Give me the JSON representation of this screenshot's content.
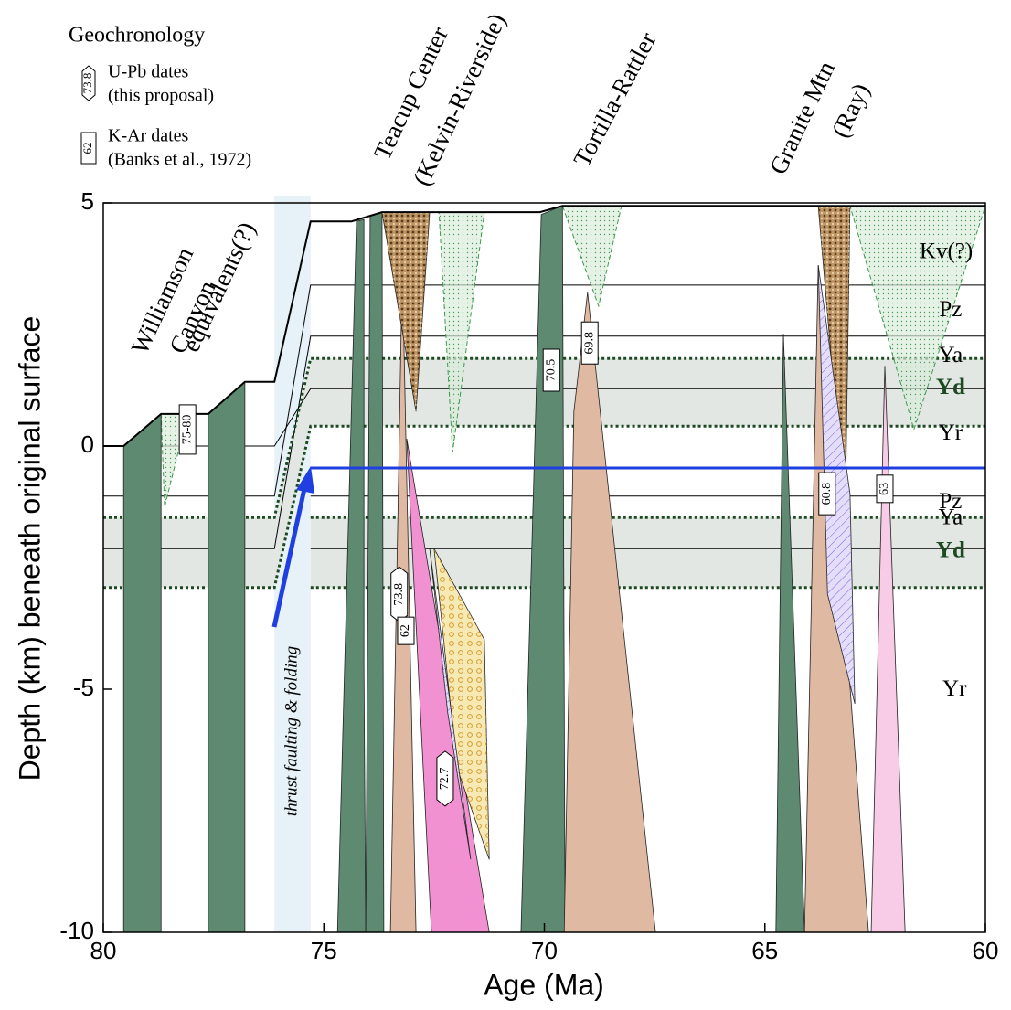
{
  "chart_data": {
    "type": "geologic-section",
    "xlabel": "Age (Ma)",
    "ylabel": "Depth (km) beneath original surface",
    "xlim": [
      80,
      60
    ],
    "ylim": [
      -10,
      5
    ],
    "xticks": [
      80,
      75,
      70,
      65,
      60
    ],
    "yticks": [
      5,
      0,
      -5,
      -10
    ],
    "legend": {
      "title": "Geochronology",
      "items": [
        {
          "kind": "U-Pb",
          "symbol": "73.8",
          "text": [
            "U-Pb dates",
            "(this proposal)"
          ]
        },
        {
          "kind": "K-Ar",
          "symbol": "62",
          "text": [
            "K-Ar dates",
            "(Banks et al., 1972)"
          ]
        }
      ]
    },
    "columns": [
      [
        "Williamson",
        "Canyon",
        "equivalents(?)"
      ],
      [
        "Teacup Center",
        "(Kelvin-Riverside)"
      ],
      [
        "Tortilla-Rattler"
      ],
      [
        "Granite Mtn",
        "(Ray)"
      ]
    ],
    "thrust_zone": {
      "x": [
        76.12,
        75.3
      ],
      "label": "thrust faulting & folding"
    },
    "bands": [
      {
        "color": "#e2e7e4",
        "x": [
          80,
          76.12,
          75.3,
          60
        ],
        "top": [
          -1.47,
          -1.47,
          1.8,
          1.8
        ],
        "bottom": [
          -2.91,
          -2.91,
          0.41,
          0.41
        ]
      },
      {
        "color": "#e2e7e4",
        "x": [
          75.3,
          60
        ],
        "top": [
          -1.47,
          -1.47
        ],
        "bottom": [
          -2.91,
          -2.91
        ]
      }
    ],
    "contacts": [
      {
        "style": "solid",
        "x": [
          80,
          76.12,
          75.3,
          60
        ],
        "y": [
          0,
          0,
          1.18,
          1.18
        ]
      },
      {
        "style": "solid",
        "x": [
          80,
          76.12,
          75.3,
          60
        ],
        "y": [
          -1.03,
          -1.03,
          3.31,
          3.31
        ]
      },
      {
        "style": "solid",
        "x": [
          80,
          76.12,
          75.3,
          60
        ],
        "y": [
          -2.11,
          -2.11,
          2.26,
          2.26
        ]
      },
      {
        "style": "solid",
        "x": [
          75.3,
          60
        ],
        "y": [
          -1.03,
          -1.03
        ]
      },
      {
        "style": "solid",
        "x": [
          75.3,
          60
        ],
        "y": [
          -2.11,
          -2.11
        ]
      },
      {
        "style": "dotted",
        "x": [
          80,
          76.12,
          75.3,
          60
        ],
        "y": [
          -1.47,
          -1.47,
          1.8,
          1.8
        ]
      },
      {
        "style": "dotted",
        "x": [
          80,
          76.12,
          75.3,
          60
        ],
        "y": [
          -2.91,
          -2.91,
          0.41,
          0.41
        ]
      },
      {
        "style": "dotted",
        "x": [
          75.3,
          60
        ],
        "y": [
          -1.47,
          -1.47
        ]
      },
      {
        "style": "dotted",
        "x": [
          75.3,
          60
        ],
        "y": [
          -2.91,
          -2.91
        ]
      }
    ],
    "bodies": [
      {
        "color": "#dcecdc",
        "pattern": "stipple",
        "x": [
          78.69,
          78.09,
          78.61
        ],
        "y": [
          0.66,
          0.66,
          -1.26
        ]
      },
      {
        "color": "#dcecdc",
        "pattern": "stipple",
        "x": [
          72.39,
          71.36,
          72.08
        ],
        "y": [
          4.81,
          4.81,
          -0.13
        ]
      },
      {
        "color": "#dcecdc",
        "pattern": "stipple",
        "x": [
          69.59,
          68.25,
          68.77
        ],
        "y": [
          4.94,
          4.94,
          2.88
        ]
      },
      {
        "color": "#dcecdc",
        "pattern": "stipple",
        "x": [
          63.07,
          60,
          61.62
        ],
        "y": [
          4.94,
          4.94,
          0.34
        ]
      },
      {
        "color": "#5e8a72",
        "x": [
          79.54,
          78.69,
          78.69,
          79.54
        ],
        "y": [
          0,
          0.66,
          -10,
          -10
        ]
      },
      {
        "color": "#5e8a72",
        "x": [
          77.62,
          76.79,
          76.79,
          77.62
        ],
        "y": [
          0.66,
          1.32,
          -10,
          -10
        ]
      },
      {
        "color": "#5e8a72",
        "x": [
          74.26,
          74.09,
          74.09,
          74.05,
          74.69
        ],
        "y": [
          4.62,
          4.66,
          -4.55,
          -10,
          -10
        ]
      },
      {
        "color": "#5e8a72",
        "x": [
          73.95,
          73.68,
          73.64,
          74.05
        ],
        "y": [
          4.74,
          4.81,
          -10,
          -10
        ]
      },
      {
        "color": "#5e8a72",
        "x": [
          70.07,
          69.59,
          69.53,
          70.53
        ],
        "y": [
          4.76,
          4.94,
          -10,
          -10
        ]
      },
      {
        "color": "#5e8a72",
        "x": [
          64.58,
          64.1,
          64.75
        ],
        "y": [
          2.31,
          -10,
          -10
        ]
      },
      {
        "color": "#e0b9a2",
        "x": [
          73.22,
          72.91,
          73.49
        ],
        "y": [
          3.72,
          -10,
          -10
        ]
      },
      {
        "color": "#e0b9a2",
        "x": [
          69.02,
          67.48,
          69.55,
          69.33
        ],
        "y": [
          3.16,
          -10,
          -10,
          0.71
        ]
      },
      {
        "color": "#e0b9a2",
        "x": [
          63.79,
          62.65,
          64.1
        ],
        "y": [
          3.72,
          -10,
          -10
        ]
      },
      {
        "color": "#f291d2",
        "x": [
          73.12,
          71.25,
          72.56
        ],
        "y": [
          0.15,
          -10,
          -10
        ]
      },
      {
        "color": "#f8cbe6",
        "x": [
          62.28,
          61.82,
          62.59
        ],
        "y": [
          1.65,
          -10,
          -10
        ]
      },
      {
        "color": "#bf9766",
        "pattern": "cross",
        "x": [
          73.68,
          72.6,
          72.91
        ],
        "y": [
          4.81,
          4.81,
          0.71
        ]
      },
      {
        "color": "#bf9766",
        "pattern": "cross",
        "x": [
          63.79,
          63.07,
          63.17,
          63.48
        ],
        "y": [
          4.94,
          4.94,
          -0.98,
          1.65
        ]
      },
      {
        "color": "#f6e9b4",
        "pattern": "circles",
        "x": [
          72.5,
          71.36,
          71.25,
          71.98
        ],
        "y": [
          -2.11,
          -3.98,
          -8.5,
          -6.62
        ]
      },
      {
        "color": "#e4defa",
        "pattern": "hatch",
        "x": [
          72.6,
          71.67,
          72.19
        ],
        "y": [
          -2.11,
          -8.5,
          -5.49
        ]
      },
      {
        "color": "#e4defa",
        "pattern": "hatch",
        "x": [
          63.79,
          63.07,
          62.96,
          63.58
        ],
        "y": [
          3.72,
          -0.98,
          -5.3,
          -3.04
        ]
      }
    ],
    "detachment": {
      "color": "#1f3fe0",
      "x": [
        75.3,
        60
      ],
      "y": [
        -0.45,
        -0.45
      ]
    },
    "surface": {
      "x": [
        80,
        79.54,
        78.69,
        77.62,
        76.79,
        76.12,
        75.3,
        74.37,
        73.68,
        70.1,
        69.59,
        60
      ],
      "y": [
        0,
        0,
        0.66,
        0.66,
        1.32,
        1.32,
        4.62,
        4.62,
        4.81,
        4.81,
        4.94,
        4.94
      ]
    },
    "layer_labels": [
      {
        "text": "Kv(?)",
        "x": 60.89,
        "y": 3.97
      },
      {
        "text": "Pz",
        "x": 60.79,
        "y": 2.78
      },
      {
        "text": "Ya",
        "x": 60.79,
        "y": 1.84
      },
      {
        "text": "Yd",
        "x": 60.79,
        "y": 1.18,
        "color": "#1d4a22"
      },
      {
        "text": "Yr",
        "x": 60.79,
        "y": 0.24
      },
      {
        "text": "Pz",
        "x": 60.79,
        "y": -1.17
      },
      {
        "text": "Ya",
        "x": 60.79,
        "y": -1.5
      },
      {
        "text": "Yd",
        "x": 60.79,
        "y": -2.18,
        "color": "#1d4a22"
      },
      {
        "text": "Yr",
        "x": 60.7,
        "y": -5.02
      }
    ],
    "dates": [
      {
        "kind": "K-Ar",
        "text": "75-80",
        "x": 78.09,
        "y": 0.34
      },
      {
        "kind": "U-Pb",
        "text": "73.8",
        "x": 73.29,
        "y": -3.05
      },
      {
        "kind": "K-Ar",
        "text": "62",
        "x": 73.14,
        "y": -3.8
      },
      {
        "kind": "K-Ar",
        "text": "70.5",
        "x": 69.84,
        "y": 1.56
      },
      {
        "kind": "K-Ar",
        "text": "69.8",
        "x": 68.97,
        "y": 2.12
      },
      {
        "kind": "U-Pb",
        "text": "72.7",
        "x": 72.25,
        "y": -6.84
      },
      {
        "kind": "K-Ar",
        "text": "60.8",
        "x": 63.59,
        "y": -0.98
      },
      {
        "kind": "K-Ar",
        "text": "63",
        "x": 62.28,
        "y": -0.88
      }
    ]
  }
}
